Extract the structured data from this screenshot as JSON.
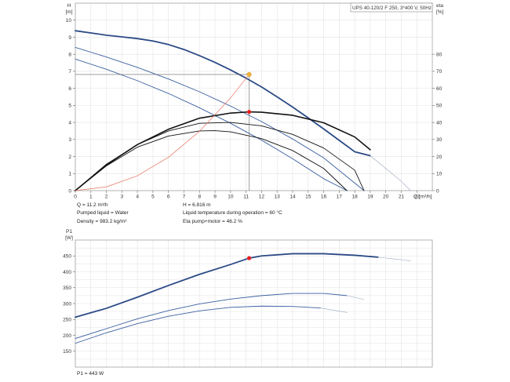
{
  "chart_data": [
    {
      "type": "line",
      "title": "UPS 40-120/2 F 250, 3*400 V, 50Hz",
      "xlabel": "Q [m³/h]",
      "ylabel": "H [m]",
      "ylabel_line1": "H",
      "ylabel_line2": "[m]",
      "y2label_line1": "eta",
      "y2label_line2": "[%]",
      "xlim": [
        0,
        23
      ],
      "ylim": [
        0,
        11
      ],
      "y2lim": [
        0,
        110
      ],
      "x_ticks": [
        0,
        1,
        2,
        3,
        4,
        5,
        6,
        7,
        8,
        9,
        10,
        11,
        12,
        13,
        14,
        15,
        16,
        17,
        18,
        19,
        20,
        21,
        22
      ],
      "y_ticks": [
        0,
        1,
        2,
        3,
        4,
        5,
        6,
        7,
        8,
        9,
        10
      ],
      "y2_ticks": [
        0,
        10,
        20,
        30,
        40,
        50,
        60,
        70,
        80
      ],
      "grid": true,
      "head_series": [
        {
          "name": "speed 3",
          "color": "#2b4a86",
          "width": 1.8,
          "x": [
            0,
            1,
            2,
            3,
            4,
            5,
            6,
            7,
            8,
            9,
            10,
            11,
            12,
            13,
            14,
            15,
            16,
            17,
            18,
            19
          ],
          "y": [
            9.38,
            9.25,
            9.12,
            9.02,
            8.92,
            8.78,
            8.57,
            8.28,
            7.92,
            7.52,
            7.08,
            6.6,
            6.08,
            5.5,
            4.9,
            4.27,
            3.62,
            2.95,
            2.28,
            2.05
          ]
        },
        {
          "name": "speed 3 extension",
          "color": "#9aa6bf",
          "width": 0.6,
          "x": [
            19,
            20,
            21,
            21.6
          ],
          "y": [
            2.05,
            1.3,
            0.55,
            0
          ]
        },
        {
          "name": "speed 2",
          "color": "#3b5fa0",
          "width": 0.9,
          "x": [
            0,
            2,
            4,
            6,
            8,
            10,
            12,
            14,
            16,
            18.6
          ],
          "y": [
            8.4,
            7.84,
            7.23,
            6.55,
            5.8,
            4.96,
            4.05,
            3.03,
            1.92,
            0
          ]
        },
        {
          "name": "speed 1",
          "color": "#3b5fa0",
          "width": 0.9,
          "x": [
            0,
            2,
            4,
            6,
            8,
            10,
            12,
            14,
            16,
            17.5
          ],
          "y": [
            7.72,
            7.12,
            6.45,
            5.7,
            4.86,
            3.95,
            2.96,
            1.87,
            0.7,
            0
          ]
        }
      ],
      "eta_series": [
        {
          "name": "eta speed 3",
          "color": "#111111",
          "width": 1.6,
          "x": [
            0,
            2,
            4,
            6,
            8,
            10,
            11.2,
            12,
            14,
            16,
            18,
            19
          ],
          "y": [
            0,
            15,
            27,
            36,
            42.5,
            45.5,
            46.2,
            46,
            44.2,
            39.8,
            31.5,
            24
          ]
        },
        {
          "name": "eta speed 2",
          "color": "#111111",
          "width": 0.9,
          "x": [
            0,
            2,
            4,
            6,
            8,
            10,
            12,
            14,
            16,
            18,
            18.6
          ],
          "y": [
            0,
            15.5,
            27,
            35,
            39.5,
            40,
            38,
            33,
            25,
            12,
            0
          ]
        },
        {
          "name": "eta speed 1",
          "color": "#111111",
          "width": 0.9,
          "x": [
            0,
            2,
            4,
            6,
            8,
            9,
            10,
            12,
            14,
            16,
            17.5
          ],
          "y": [
            0,
            14.5,
            25.5,
            32,
            35,
            35.2,
            34.5,
            30.5,
            23.5,
            13,
            0
          ]
        }
      ],
      "system_curve": {
        "name": "system curve",
        "color": "#e8735f",
        "x": [
          0,
          2,
          4,
          6,
          8,
          10,
          11.2
        ],
        "y": [
          0,
          0.22,
          0.87,
          1.96,
          3.48,
          5.44,
          6.82
        ]
      },
      "operating_point_head": {
        "x": 11.2,
        "y": 6.816,
        "color": "#f2b13a"
      },
      "operating_point_eta": {
        "x": 11.2,
        "y": 46.2,
        "color": "#e8201c"
      }
    },
    {
      "type": "line",
      "title": "",
      "xlabel": "",
      "ylabel": "P1 [W]",
      "ylabel_line1": "P1",
      "ylabel_line2": "[W]",
      "xlim": [
        0,
        23
      ],
      "ylim": [
        100,
        500
      ],
      "y_ticks": [
        150,
        200,
        250,
        300,
        350,
        400,
        450
      ],
      "grid": true,
      "series": [
        {
          "name": "P1 speed 3",
          "color": "#2b4a86",
          "width": 1.8,
          "x": [
            0,
            2,
            4,
            6,
            8,
            10,
            11.2,
            12,
            14,
            16,
            18,
            19.5
          ],
          "y": [
            257,
            285,
            320,
            357,
            392,
            423,
            443,
            450,
            457,
            457,
            452,
            446
          ]
        },
        {
          "name": "P1 speed 3 extension",
          "color": "#9aa6bf",
          "width": 0.6,
          "x": [
            19.5,
            21,
            21.6
          ],
          "y": [
            446,
            438,
            434
          ]
        },
        {
          "name": "P1 speed 2",
          "color": "#3b5fa0",
          "width": 0.9,
          "x": [
            0,
            2,
            4,
            6,
            8,
            10,
            12,
            14,
            16,
            17.5
          ],
          "y": [
            190,
            221,
            252,
            278,
            299,
            314,
            325,
            332,
            332,
            325
          ]
        },
        {
          "name": "P1 speed 2 extension",
          "color": "#9aa6bf",
          "width": 0.6,
          "x": [
            17.5,
            18.6
          ],
          "y": [
            325,
            313
          ]
        },
        {
          "name": "P1 speed 1",
          "color": "#3b5fa0",
          "width": 0.9,
          "x": [
            0,
            2,
            4,
            6,
            8,
            10,
            12,
            14,
            15.8
          ],
          "y": [
            175,
            208,
            237,
            260,
            277,
            288,
            292,
            291,
            286
          ]
        },
        {
          "name": "P1 speed 1 extension",
          "color": "#9aa6bf",
          "width": 0.6,
          "x": [
            15.8,
            17.5
          ],
          "y": [
            286,
            272
          ]
        }
      ],
      "operating_point": {
        "x": 11.2,
        "y": 443,
        "color": "#e8201c"
      }
    }
  ],
  "info": {
    "q": "Q = 11.2 m³/h",
    "h": "H = 6.816 m",
    "liquid": "Pumped liquid = Water",
    "temp": "Liquid temperature during operation = 60 °C",
    "density": "Density = 983.2 kg/m³",
    "eta": "Eta pump+motor = 46.2 %",
    "p1": "P1 = 443 W"
  }
}
